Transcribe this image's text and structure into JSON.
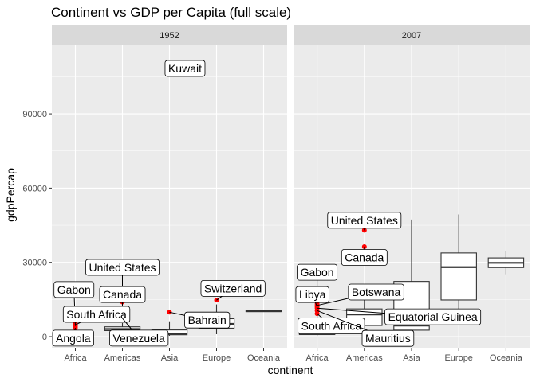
{
  "chart_data": {
    "type": "boxplot",
    "title": "Continent vs GDP per Capita (full scale)",
    "xlabel": "continent",
    "ylabel": "gdpPercap",
    "ylim": [
      -4500,
      118000
    ],
    "yticks": [
      0,
      30000,
      60000,
      90000
    ],
    "categories": [
      "Africa",
      "Americas",
      "Asia",
      "Europe",
      "Oceania"
    ],
    "colors": {
      "panel_bg": "#ebebeb",
      "grid_major": "#ffffff",
      "strip_bg": "#d9d9d9",
      "outlier": "#ff0000",
      "box_stroke": "#333333"
    },
    "panels": [
      {
        "name": "1952",
        "boxes": [
          {
            "category": "Africa",
            "min": 300,
            "q1": 530,
            "median": 987,
            "q3": 1450,
            "max": 2850
          },
          {
            "category": "Americas",
            "min": 1400,
            "q1": 2430,
            "median": 3050,
            "q3": 3950,
            "max": 5500
          },
          {
            "category": "Asia",
            "min": 330,
            "q1": 750,
            "median": 1210,
            "q3": 2700,
            "max": 6200
          },
          {
            "category": "Europe",
            "min": 970,
            "q1": 3400,
            "median": 5140,
            "q3": 7240,
            "max": 13000
          },
          {
            "category": "Oceania",
            "min": 10040,
            "q1": 10170,
            "median": 10300,
            "q3": 10430,
            "max": 10560
          }
        ],
        "outliers": [
          {
            "category": "Africa",
            "y": 3500
          },
          {
            "category": "Africa",
            "y": 3900
          },
          {
            "category": "Africa",
            "y": 4300
          },
          {
            "category": "Africa",
            "y": 4725
          },
          {
            "category": "Africa",
            "y": 5100
          },
          {
            "category": "Americas",
            "y": 7400
          },
          {
            "category": "Americas",
            "y": 13990
          },
          {
            "category": "Asia",
            "y": 9870
          },
          {
            "category": "Asia",
            "y": 108382
          },
          {
            "category": "Europe",
            "y": 14734
          }
        ],
        "annotations": [
          {
            "label": "Kuwait",
            "category": "Asia",
            "y": 108382,
            "lx": 0.33,
            "ly": 108382
          },
          {
            "label": "United States",
            "category": "Americas",
            "y": 13990,
            "lx": 0.0,
            "ly": 28000
          },
          {
            "label": "Canada",
            "category": "Americas",
            "y": 11367,
            "lx": 0.0,
            "ly": 17000,
            "px": 0.0,
            "pxoff": 1.0
          },
          {
            "label": "Switzerland",
            "category": "Europe",
            "y": 14734,
            "lx": 0.35,
            "ly": 19500
          },
          {
            "label": "Gabon",
            "category": "Africa",
            "y": 4300,
            "lx": -0.03,
            "ly": 19000
          },
          {
            "label": "South Africa",
            "category": "Africa",
            "y": 4725,
            "lx": 0.45,
            "ly": 9000
          },
          {
            "label": "Bahrain",
            "category": "Asia",
            "y": 9870,
            "lx": 0.8,
            "ly": 6700
          },
          {
            "label": "Angola",
            "category": "Africa",
            "y": 3500,
            "lx": -0.05,
            "ly": -600
          },
          {
            "label": "Venezuela",
            "category": "Americas",
            "y": 7400,
            "lx": 0.35,
            "ly": -600
          }
        ]
      },
      {
        "name": "2007",
        "boxes": [
          {
            "category": "Africa",
            "min": 277,
            "q1": 823,
            "median": 1452,
            "q3": 3900,
            "max": 8600
          },
          {
            "category": "Americas",
            "min": 1202,
            "q1": 4500,
            "median": 8948,
            "q3": 11200,
            "max": 18000
          },
          {
            "category": "Asia",
            "min": 944,
            "q1": 2600,
            "median": 4471,
            "q3": 22300,
            "max": 47307
          },
          {
            "category": "Europe",
            "min": 5937,
            "q1": 14800,
            "median": 28054,
            "q3": 33800,
            "max": 49357
          },
          {
            "category": "Oceania",
            "min": 25185,
            "q1": 27900,
            "median": 29810,
            "q3": 31800,
            "max": 34435
          }
        ],
        "outliers": [
          {
            "category": "Africa",
            "y": 9270
          },
          {
            "category": "Africa",
            "y": 10500
          },
          {
            "category": "Africa",
            "y": 11500
          },
          {
            "category": "Africa",
            "y": 12057
          },
          {
            "category": "Africa",
            "y": 12600
          },
          {
            "category": "Africa",
            "y": 13206
          },
          {
            "category": "Americas",
            "y": 36319
          },
          {
            "category": "Americas",
            "y": 42952
          }
        ],
        "annotations": [
          {
            "label": "United States",
            "category": "Americas",
            "y": 42952,
            "lx": 0.0,
            "ly": 47000
          },
          {
            "label": "Canada",
            "category": "Americas",
            "y": 36319,
            "lx": 0.0,
            "ly": 32000
          },
          {
            "label": "Gabon",
            "category": "Africa",
            "y": 13206,
            "lx": 0.0,
            "ly": 26000
          },
          {
            "label": "Libya",
            "category": "Africa",
            "y": 12057,
            "lx": -0.1,
            "ly": 17000
          },
          {
            "label": "Botswana",
            "category": "Africa",
            "y": 12600,
            "lx": 1.25,
            "ly": 18000
          },
          {
            "label": "Equatorial Guinea",
            "category": "Africa",
            "y": 11500,
            "lx": 2.45,
            "ly": 8000
          },
          {
            "label": "South Africa",
            "category": "Africa",
            "y": 9270,
            "lx": 0.3,
            "ly": 4300
          },
          {
            "label": "Mauritius",
            "category": "Africa",
            "y": 10500,
            "lx": 1.5,
            "ly": -700
          }
        ]
      }
    ]
  }
}
